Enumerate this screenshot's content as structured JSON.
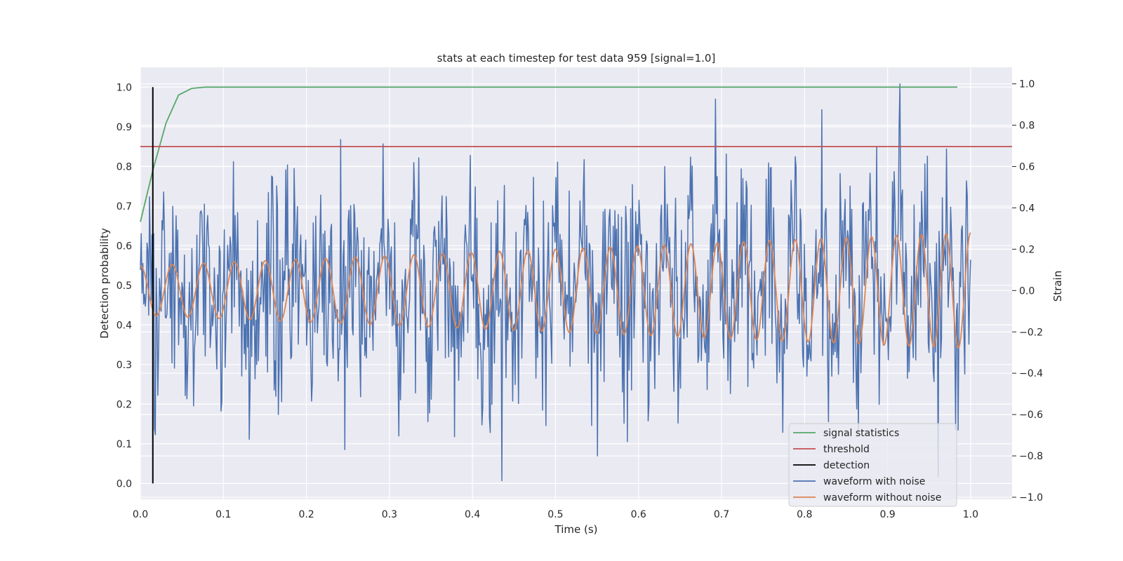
{
  "chart_data": {
    "type": "line",
    "title": "stats at each timestep for test data 959 [signal=1.0]",
    "xlabel": "Time (s)",
    "ylabel": "Detection probability",
    "y2label": "Strain",
    "xlim": [
      0.0,
      1.05
    ],
    "ylim": [
      -0.04,
      1.05
    ],
    "y2lim": [
      -1.01,
      1.08
    ],
    "xticks": [
      "0.0",
      "0.1",
      "0.2",
      "0.3",
      "0.4",
      "0.5",
      "0.6",
      "0.7",
      "0.8",
      "0.9",
      "1.0"
    ],
    "yticks": [
      "0.0",
      "0.1",
      "0.2",
      "0.3",
      "0.4",
      "0.5",
      "0.6",
      "0.7",
      "0.8",
      "0.9",
      "1.0"
    ],
    "y2ticks": [
      "−1.0",
      "−0.8",
      "−0.6",
      "−0.4",
      "−0.2",
      "0.0",
      "0.2",
      "0.4",
      "0.6",
      "0.8",
      "1.0"
    ],
    "grid": true,
    "legend_position": "lower-right",
    "series": [
      {
        "name": "signal statistics",
        "color": "#55a868",
        "axis": "left",
        "x": [
          0.0,
          0.015,
          0.031,
          0.046,
          0.062,
          0.078,
          0.1,
          0.2,
          0.3,
          0.4,
          0.5,
          0.6,
          0.7,
          0.8,
          0.9,
          0.984
        ],
        "y": [
          0.66,
          0.79,
          0.91,
          0.98,
          0.997,
          1.0,
          1.0,
          1.0,
          1.0,
          1.0,
          1.0,
          1.0,
          1.0,
          1.0,
          1.0,
          1.0
        ]
      },
      {
        "name": "threshold",
        "color": "#c44e52",
        "axis": "left",
        "x": [
          0.0,
          1.05
        ],
        "y": [
          0.85,
          0.85
        ]
      },
      {
        "name": "detection",
        "color": "#000000",
        "axis": "left",
        "x": [
          0.015,
          0.015
        ],
        "y": [
          0.0,
          1.0
        ]
      },
      {
        "name": "waveform with noise",
        "color": "#4c72b0",
        "axis": "right",
        "generated": "noisy sinusoid, 1000 samples over 0–1 s, amplitude ≈ ±0.6, peaks near 1.0 at t≈0.915 and min ≈ −0.92 at t≈0.435",
        "x_range": [
          0.0,
          1.0
        ]
      },
      {
        "name": "waveform without noise",
        "color": "#dd8452",
        "axis": "right",
        "generated": "chirping sinusoid, amplitude growing from ≈0.12 to ≈0.28, about 30 cycles over 0–1 s",
        "x_range": [
          0.0,
          1.0
        ]
      }
    ]
  }
}
